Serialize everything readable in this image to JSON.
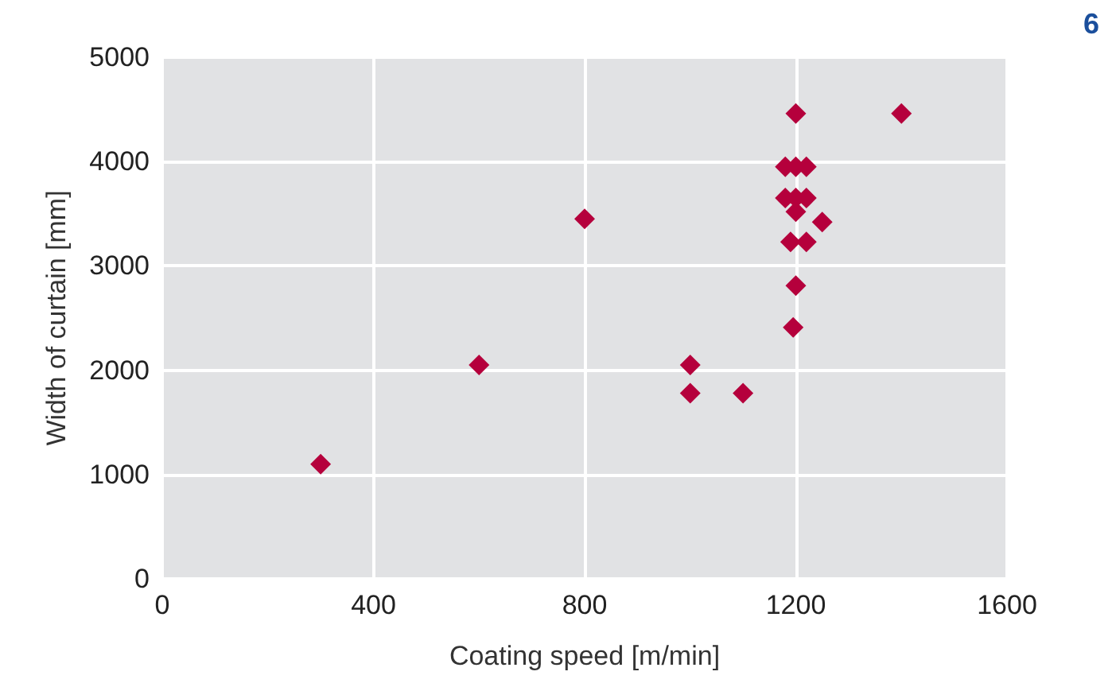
{
  "chart_data": {
    "type": "scatter",
    "xlabel": "Coating speed [m/min]",
    "ylabel": "Width of curtain [mm]",
    "annotations": [
      "6"
    ],
    "x": [
      300,
      600,
      800,
      1000,
      1000,
      1100,
      1200,
      1400,
      1200,
      1180,
      1200,
      1220,
      1180,
      1200,
      1220,
      1250,
      1190,
      1220,
      1200,
      1195
    ],
    "series": [
      {
        "color": "#b5003c",
        "values": [
          1100,
          2050,
          3450,
          2050,
          1780,
          1780,
          4460,
          4460,
          3520,
          3950,
          3950,
          3950,
          3650,
          3650,
          3650,
          3420,
          3230,
          3230,
          2810,
          2410
        ]
      }
    ],
    "xlim": [
      0,
      1600
    ],
    "xticks": [
      0,
      400,
      800,
      1200,
      1600
    ],
    "ylim": [
      0,
      5000
    ],
    "yticks": [
      0,
      1000,
      2000,
      3000,
      4000,
      5000
    ],
    "grid": true,
    "marker": "diamond"
  }
}
